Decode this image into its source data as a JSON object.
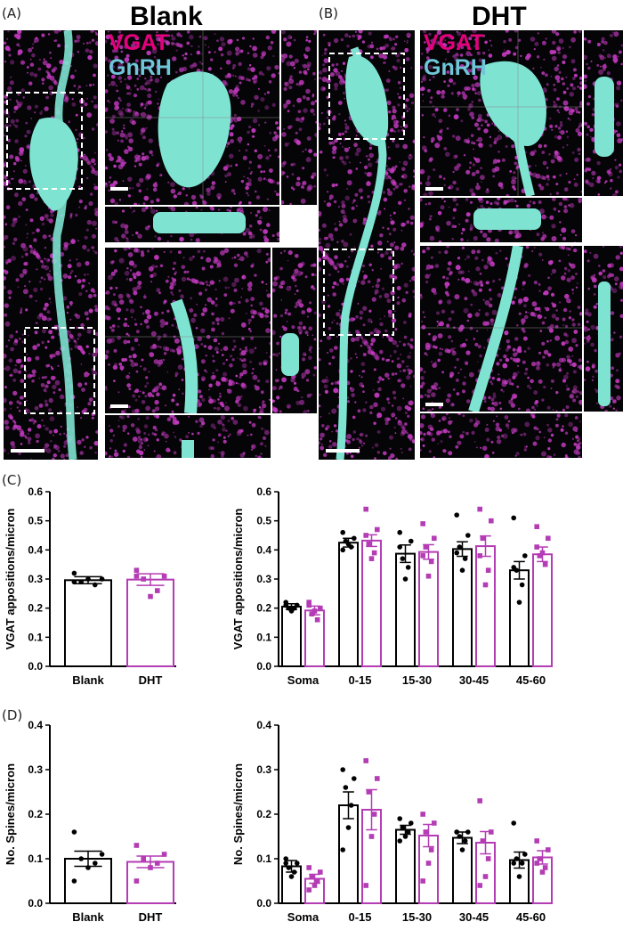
{
  "panels": {
    "A": {
      "letter": "(A)",
      "title": "Blank"
    },
    "B": {
      "letter": "(B)",
      "title": "DHT"
    },
    "C": {
      "letter": "(C)"
    },
    "D": {
      "letter": "(D)"
    }
  },
  "labels": {
    "vgat": "VGAT",
    "gnrh": "GnRH"
  },
  "colors": {
    "vgat": "#e6007e",
    "gnrh": "#6fc6d8",
    "cell": "#7fe3d2",
    "puncta": "#c33ac0",
    "blank": "#000000",
    "dht": "#b43cb4"
  },
  "chart_data": [
    {
      "type": "bar",
      "categories": [
        "Blank",
        "DHT"
      ],
      "values": [
        0.296,
        0.298
      ],
      "errors": [
        0.012,
        0.02
      ],
      "points": [
        [
          0.32,
          0.3,
          0.29,
          0.28,
          0.3,
          0.29
        ],
        [
          0.33,
          0.31,
          0.3,
          0.26,
          0.24,
          0.31
        ]
      ],
      "ylabel": "VGAT appositions/micron",
      "ylim": [
        0,
        0.6
      ],
      "yticks": [
        "0.0",
        "0.1",
        "0.2",
        "0.3",
        "0.4",
        "0.5",
        "0.6"
      ]
    },
    {
      "type": "bar",
      "categories": [
        "Soma",
        "0-15",
        "15-30",
        "30-45",
        "45-60"
      ],
      "series": [
        {
          "values": [
            0.205,
            0.425,
            0.387,
            0.403,
            0.33
          ],
          "errors": [
            0.01,
            0.015,
            0.03,
            0.025,
            0.03
          ],
          "points": [
            [
              0.22,
              0.21,
              0.2,
              0.2,
              0.19,
              0.21
            ],
            [
              0.46,
              0.44,
              0.43,
              0.41,
              0.42,
              0.4
            ],
            [
              0.46,
              0.43,
              0.37,
              0.34,
              0.3,
              0.41
            ],
            [
              0.52,
              0.45,
              0.41,
              0.37,
              0.33,
              0.39
            ],
            [
              0.51,
              0.38,
              0.33,
              0.28,
              0.22,
              0.34
            ]
          ]
        },
        {
          "values": [
            0.192,
            0.432,
            0.393,
            0.413,
            0.385
          ],
          "errors": [
            0.015,
            0.02,
            0.025,
            0.035,
            0.025
          ],
          "points": [
            [
              0.22,
              0.2,
              0.18,
              0.16,
              0.19,
              0.21
            ],
            [
              0.54,
              0.47,
              0.42,
              0.39,
              0.37,
              0.45
            ],
            [
              0.49,
              0.44,
              0.41,
              0.36,
              0.31,
              0.38
            ],
            [
              0.54,
              0.5,
              0.44,
              0.33,
              0.28,
              0.38
            ],
            [
              0.48,
              0.44,
              0.38,
              0.35,
              0.39,
              0.41
            ]
          ]
        }
      ],
      "ylabel": "VGAT appositions/micron",
      "ylim": [
        0,
        0.6
      ],
      "yticks": [
        "0.0",
        "0.1",
        "0.2",
        "0.3",
        "0.4",
        "0.5",
        "0.6"
      ]
    },
    {
      "type": "bar",
      "categories": [
        "Blank",
        "DHT"
      ],
      "values": [
        0.1,
        0.093
      ],
      "errors": [
        0.017,
        0.013
      ],
      "points": [
        [
          0.16,
          0.11,
          0.1,
          0.09,
          0.08,
          0.05
        ],
        [
          0.13,
          0.11,
          0.1,
          0.09,
          0.08,
          0.05
        ]
      ],
      "ylabel": "No. Spines/micron",
      "ylim": [
        0,
        0.4
      ],
      "yticks": [
        "0.0",
        "0.1",
        "0.2",
        "0.3",
        "0.4"
      ]
    },
    {
      "type": "bar",
      "categories": [
        "Soma",
        "0-15",
        "15-30",
        "30-45",
        "45-60"
      ],
      "series": [
        {
          "values": [
            0.083,
            0.22,
            0.165,
            0.147,
            0.097
          ],
          "errors": [
            0.013,
            0.03,
            0.01,
            0.013,
            0.018
          ],
          "points": [
            [
              0.1,
              0.09,
              0.08,
              0.07,
              0.06,
              0.09
            ],
            [
              0.3,
              0.28,
              0.26,
              0.22,
              0.17,
              0.12
            ],
            [
              0.19,
              0.18,
              0.17,
              0.16,
              0.15,
              0.14
            ],
            [
              0.16,
              0.16,
              0.15,
              0.14,
              0.12,
              0.16
            ],
            [
              0.18,
              0.11,
              0.1,
              0.09,
              0.06,
              0.09
            ]
          ]
        },
        {
          "values": [
            0.055,
            0.21,
            0.152,
            0.136,
            0.103
          ],
          "errors": [
            0.01,
            0.045,
            0.025,
            0.025,
            0.015
          ],
          "points": [
            [
              0.08,
              0.07,
              0.06,
              0.05,
              0.04,
              0.03
            ],
            [
              0.32,
              0.28,
              0.25,
              0.2,
              0.15,
              0.04
            ],
            [
              0.2,
              0.18,
              0.16,
              0.12,
              0.09,
              0.05
            ],
            [
              0.23,
              0.16,
              0.14,
              0.1,
              0.06,
              0.04
            ],
            [
              0.14,
              0.12,
              0.1,
              0.08,
              0.07,
              0.09
            ]
          ]
        }
      ],
      "ylabel": "No. Spines/micron",
      "ylim": [
        0,
        0.4
      ],
      "yticks": [
        "0.0",
        "0.1",
        "0.2",
        "0.3",
        "0.4"
      ]
    }
  ]
}
